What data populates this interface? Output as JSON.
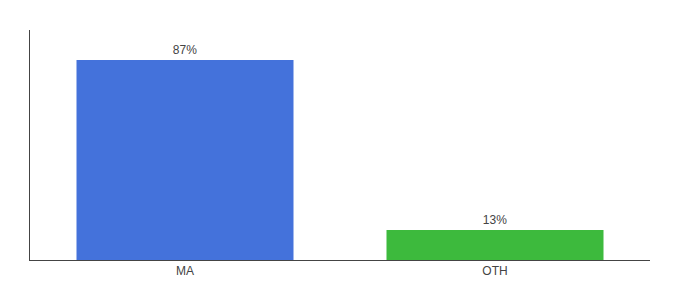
{
  "chart_data": {
    "type": "bar",
    "categories": [
      "MA",
      "OTH"
    ],
    "values": [
      87,
      13
    ],
    "value_labels": [
      "87%",
      "13%"
    ],
    "colors": [
      "#4472db",
      "#3dba3d"
    ],
    "ylim": [
      0,
      100
    ],
    "data_labels": true,
    "tick_labels": "x",
    "grid": false
  }
}
